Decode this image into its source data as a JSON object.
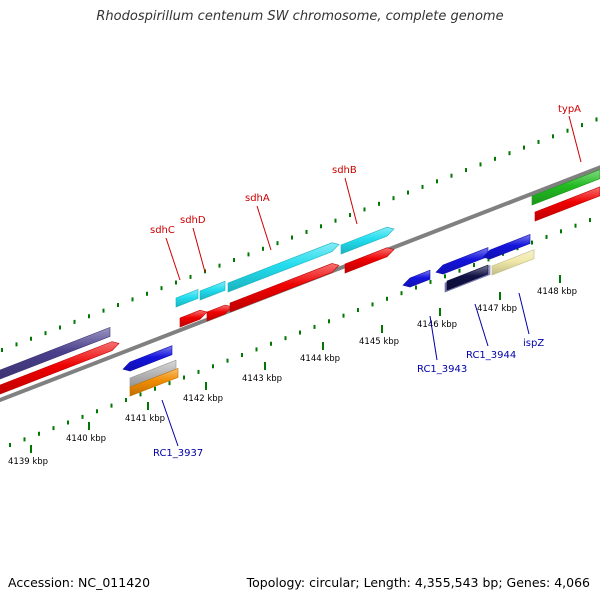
{
  "title": "Rhodospirillum centenum SW chromosome, complete genome",
  "accession_text": "Accession: NC_011420",
  "summary_text": "Topology: circular; Length: 4,355,543 bp; Genes: 4,066",
  "colors": {
    "red_gene": "#ee0000",
    "cyan_gene": "#22ddee",
    "blue_gene": "#1414dd",
    "purple_gene": "#4a3f8c",
    "green_gene": "#22bb22",
    "orange_gene": "#f08c00",
    "gray_gene": "#b8b8b8",
    "khaki_gene": "#f0e8a8",
    "lavender_gene": "#8888cc",
    "navy_gene": "#111144",
    "tick": "#007700",
    "red_label": "#cc0000",
    "blue_label": "#0000aa",
    "backbone": "#808080"
  },
  "scale_labels": [
    "4139 kbp",
    "4140 kbp",
    "4141 kbp",
    "4142 kbp",
    "4143 kbp",
    "4144 kbp",
    "4145 kbp",
    "4146 kbp",
    "4147 kbp",
    "4148 kbp"
  ],
  "forward_gene_labels": [
    "sdhC",
    "sdhD",
    "sdhA",
    "sdhB",
    "typA"
  ],
  "reverse_gene_labels": [
    "RC1_3937",
    "RC1_3943",
    "RC1_3944",
    "ispZ"
  ]
}
